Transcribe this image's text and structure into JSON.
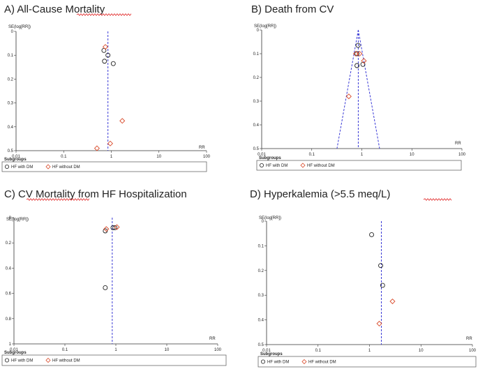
{
  "chart_data": [
    {
      "type": "scatter",
      "title": "A) All-Cause Mortality",
      "ylabel": "SE(log[RR])",
      "xlabel": "RR",
      "x_scale": "log",
      "xlim": [
        0.01,
        100
      ],
      "ylim": [
        0,
        0.5
      ],
      "y_inverted": true,
      "x_ticks": [
        "0.01",
        "0.1",
        "1",
        "10",
        "100"
      ],
      "y_ticks": [
        "0",
        "0.1",
        "0.2",
        "0.3",
        "0.4",
        "0.5"
      ],
      "summary_rr": 0.85,
      "show_funnel": false,
      "legend_title": "Subgroups",
      "series": [
        {
          "name": "HF with DM",
          "marker": "circle",
          "points": [
            [
              0.7,
              0.08
            ],
            [
              0.85,
              0.1
            ],
            [
              0.72,
              0.125
            ],
            [
              1.1,
              0.135
            ]
          ]
        },
        {
          "name": "HF without DM",
          "marker": "diamond",
          "points": [
            [
              0.75,
              0.065
            ],
            [
              1.7,
              0.375
            ],
            [
              0.95,
              0.47
            ],
            [
              0.5,
              0.49
            ]
          ]
        }
      ]
    },
    {
      "type": "scatter",
      "title": "B) Death from CV",
      "ylabel": "SE(log[RR])",
      "xlabel": "RR",
      "x_scale": "log",
      "xlim": [
        0.01,
        100
      ],
      "ylim": [
        0,
        0.5
      ],
      "y_inverted": true,
      "x_ticks": [
        "0.01",
        "0.1",
        "1",
        "10",
        "100"
      ],
      "y_ticks": [
        "0",
        "0.1",
        "0.2",
        "0.3",
        "0.4",
        "0.5"
      ],
      "summary_rr": 0.85,
      "show_funnel": true,
      "legend_title": "Subgroups",
      "series": [
        {
          "name": "HF with DM",
          "marker": "circle",
          "points": [
            [
              0.84,
              0.065
            ],
            [
              0.8,
              0.1
            ],
            [
              0.8,
              0.15
            ],
            [
              1.05,
              0.145
            ]
          ]
        },
        {
          "name": "HF without DM",
          "marker": "diamond",
          "points": [
            [
              0.76,
              0.1
            ],
            [
              0.9,
              0.1
            ],
            [
              1.1,
              0.13
            ],
            [
              0.55,
              0.28
            ]
          ]
        }
      ]
    },
    {
      "type": "scatter",
      "title": "C) CV Mortality from HF Hospitalization",
      "ylabel": "SE(log[RR])",
      "xlabel": "RR",
      "x_scale": "log",
      "xlim": [
        0.01,
        100
      ],
      "ylim": [
        0,
        1
      ],
      "y_inverted": true,
      "x_ticks": [
        "0.01",
        "0.1",
        "1",
        "10",
        "100"
      ],
      "y_ticks": [
        "0",
        "0.2",
        "0.4",
        "0.6",
        "0.8",
        "1"
      ],
      "summary_rr": 0.85,
      "show_funnel": false,
      "legend_title": "Subgroups",
      "series": [
        {
          "name": "HF with DM",
          "marker": "circle",
          "points": [
            [
              0.62,
              0.105
            ],
            [
              0.88,
              0.08
            ],
            [
              0.96,
              0.08
            ],
            [
              0.62,
              0.555
            ]
          ]
        },
        {
          "name": "HF without DM",
          "marker": "diamond",
          "points": [
            [
              0.65,
              0.09
            ],
            [
              1.05,
              0.075
            ]
          ]
        }
      ]
    },
    {
      "type": "scatter",
      "title": "D) Hyperkalemia (>5.5 meq/L)",
      "ylabel": "SE(log[RR])",
      "xlabel": "RR",
      "x_scale": "log",
      "xlim": [
        0.01,
        100
      ],
      "ylim": [
        0,
        0.5
      ],
      "y_inverted": true,
      "x_ticks": [
        "0.01",
        "0.1",
        "1",
        "10",
        "100"
      ],
      "y_ticks": [
        "0",
        "0.1",
        "0.2",
        "0.3",
        "0.4",
        "0.5"
      ],
      "summary_rr": 1.7,
      "show_funnel": false,
      "legend_title": "Subgroups",
      "series": [
        {
          "name": "HF with DM",
          "marker": "circle",
          "points": [
            [
              1.1,
              0.055
            ],
            [
              1.65,
              0.18
            ],
            [
              1.8,
              0.26
            ]
          ]
        },
        {
          "name": "HF without DM",
          "marker": "diamond",
          "points": [
            [
              2.8,
              0.325
            ],
            [
              1.55,
              0.415
            ]
          ]
        }
      ]
    }
  ]
}
